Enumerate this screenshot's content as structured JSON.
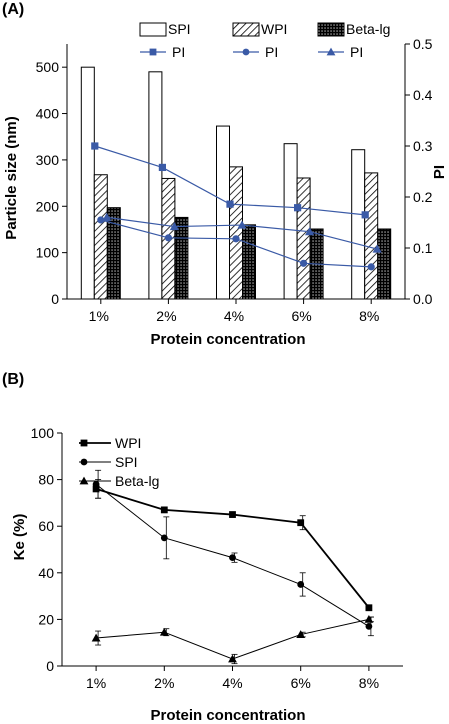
{
  "chart_data": [
    {
      "panel_label": "(A)",
      "type": "bar",
      "categories": [
        "1%",
        "2%",
        "4%",
        "6%",
        "8%"
      ],
      "xlabel": "Protein concentration",
      "ylabel": "Particle size (nm)",
      "ylabel_right": "PI",
      "ylim": [
        0,
        550
      ],
      "ylim_right": [
        0,
        0.5
      ],
      "yticks": [
        0,
        100,
        200,
        300,
        400,
        500
      ],
      "yticks_right": [
        "0.0",
        "0.1",
        "0.2",
        "0.3",
        "0.4",
        "0.5"
      ],
      "bar_series": [
        {
          "name": "SPI",
          "values": [
            500,
            490,
            373,
            335,
            322
          ],
          "fill": "#ffffff"
        },
        {
          "name": "WPI",
          "values": [
            268,
            260,
            285,
            261,
            272
          ],
          "fill": "hatch"
        },
        {
          "name": "Beta-lg",
          "values": [
            197,
            176,
            160,
            151,
            151
          ],
          "fill": "dots"
        }
      ],
      "line_series": [
        {
          "name": "PI",
          "marker": "square",
          "values": [
            0.3,
            0.258,
            0.186,
            0.179,
            0.165
          ]
        },
        {
          "name": "PI",
          "marker": "circle",
          "values": [
            0.155,
            0.12,
            0.118,
            0.07,
            0.063
          ]
        },
        {
          "name": "PI",
          "marker": "triangle",
          "values": [
            0.16,
            0.142,
            0.145,
            0.132,
            0.098
          ]
        }
      ],
      "line_color": "#3a5aa6",
      "legend_position": "top"
    },
    {
      "panel_label": "(B)",
      "type": "line",
      "categories": [
        "1%",
        "2%",
        "4%",
        "6%",
        "8%"
      ],
      "xlabel": "Protein concentration",
      "ylabel": "Ke (%)",
      "ylim": [
        0,
        100
      ],
      "yticks": [
        0,
        20,
        40,
        60,
        80,
        100
      ],
      "series": [
        {
          "name": "WPI",
          "marker": "square",
          "values": [
            76,
            67,
            65,
            61.5,
            25
          ],
          "errors": [
            4,
            0,
            0,
            3,
            0
          ]
        },
        {
          "name": "SPI",
          "marker": "circle",
          "values": [
            78,
            55,
            46.5,
            35,
            17
          ],
          "errors": [
            6,
            9,
            2,
            5,
            4
          ]
        },
        {
          "name": "Beta-lg",
          "marker": "triangle",
          "values": [
            12,
            14.5,
            3,
            13.5,
            20
          ],
          "errors": [
            3,
            1.5,
            2,
            1,
            1
          ]
        }
      ],
      "legend_position": "top-left"
    }
  ]
}
